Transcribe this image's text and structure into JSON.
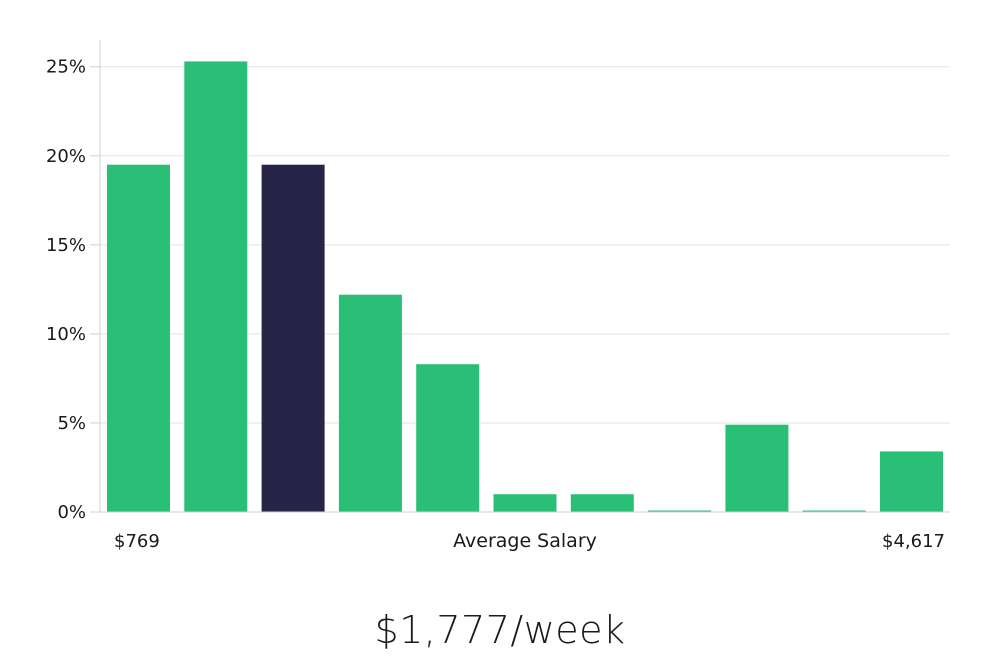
{
  "chart_data": {
    "type": "bar",
    "values": [
      19.5,
      25.3,
      19.5,
      12.2,
      8.3,
      1.0,
      1.0,
      0.05,
      4.9,
      0.05,
      3.4
    ],
    "highlight_index": 2,
    "ylim": [
      0,
      26.5
    ],
    "y_ticks": [
      0,
      5,
      10,
      15,
      20,
      25
    ],
    "y_tick_labels": [
      "0%",
      "5%",
      "10%",
      "15%",
      "20%",
      "25%"
    ],
    "x_min_label": "$769",
    "x_max_label": "$4,617",
    "xlabel": "Average Salary",
    "grid": true,
    "colors": {
      "bar": "#2abf77",
      "highlight": "#27244a",
      "grid": "#e3e3e3",
      "axis": "#d0d0d0"
    }
  },
  "headline": "$1,777/week"
}
